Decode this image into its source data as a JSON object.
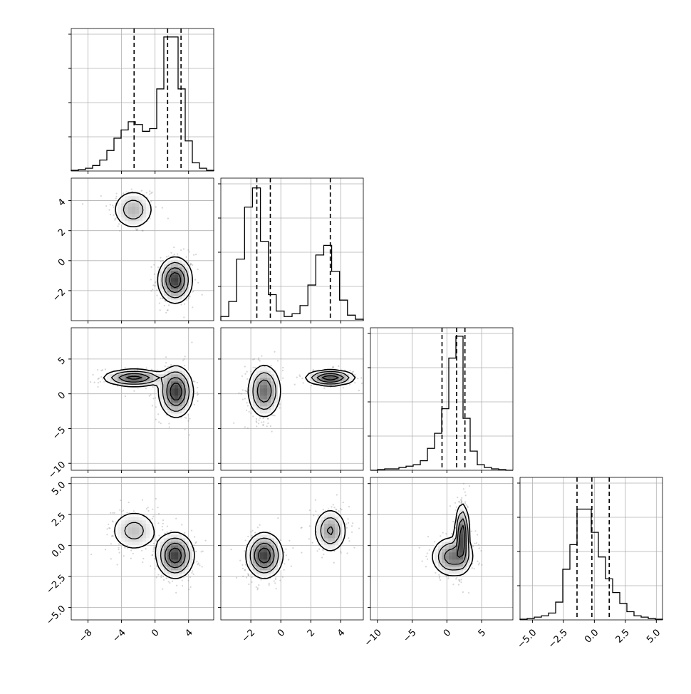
{
  "chart_data": {
    "type": "corner",
    "variables": [
      {
        "range": [
          -10,
          7
        ],
        "ticks": [
          -8,
          -4,
          0,
          4
        ],
        "tick_labels": [
          "−8",
          "−4",
          "0",
          "4"
        ],
        "quantiles": [
          -2.5,
          1.5,
          3.1
        ],
        "hist": [
          0.5,
          1,
          2,
          4,
          8,
          15,
          24,
          30,
          36,
          34,
          29,
          31,
          60,
          98,
          98,
          60,
          22,
          6,
          2,
          0.5
        ],
        "hist_max": 100
      },
      {
        "range": [
          -4,
          5.5
        ],
        "ticks": [
          -2,
          0,
          2,
          4
        ],
        "tick_labels": [
          "−2",
          "0",
          "2",
          "4"
        ],
        "quantiles": [
          -1.6,
          -0.7,
          3.3
        ],
        "hist": [
          3,
          14,
          45,
          83,
          97,
          58,
          19,
          7,
          3,
          5,
          11,
          26,
          48,
          55,
          36,
          15,
          4,
          1
        ],
        "hist_max": 100
      },
      {
        "range": [
          -11,
          9.5
        ],
        "ticks": [
          -10,
          -5,
          0,
          5
        ],
        "tick_labels": [
          "−10",
          "−5",
          "0",
          "5"
        ],
        "quantiles": [
          -0.7,
          1.4,
          2.6
        ],
        "hist": [
          0,
          0.5,
          1,
          1,
          2,
          3,
          4,
          7,
          16,
          27,
          45,
          82,
          98,
          38,
          14,
          4,
          2,
          1,
          0.5,
          0
        ],
        "hist_max": 100
      },
      {
        "range": [
          -6,
          5.5
        ],
        "ticks": [
          -5,
          -2.5,
          0,
          2.5,
          5
        ],
        "tick_labels": [
          "−5.0",
          "−2.5",
          "0.0",
          "2.5",
          "5.0"
        ],
        "quantiles": [
          -1.4,
          -0.2,
          1.2
        ],
        "hist": [
          0.5,
          1,
          2,
          3,
          5,
          13,
          37,
          55,
          81,
          81,
          64,
          46,
          30,
          20,
          12,
          6,
          3,
          2,
          1,
          0.5
        ],
        "hist_max": 100
      }
    ],
    "pair_modes": {
      "1_0": [
        {
          "mx": -2.6,
          "my": 3.4,
          "sx": 1.3,
          "sy": 0.7,
          "w": 0.35
        },
        {
          "mx": 2.4,
          "my": -1.3,
          "sx": 1.0,
          "sy": 0.75,
          "w": 0.65
        }
      ],
      "2_0": [
        {
          "mx": -2.5,
          "my": 2.3,
          "sx": 1.8,
          "sy": 0.6,
          "w": 0.35
        },
        {
          "mx": 2.5,
          "my": 0.3,
          "sx": 1.0,
          "sy": 1.8,
          "w": 0.65
        }
      ],
      "3_0": [
        {
          "mx": -2.5,
          "my": 1.2,
          "sx": 1.5,
          "sy": 0.9,
          "w": 0.35
        },
        {
          "mx": 2.4,
          "my": -0.8,
          "sx": 1.1,
          "sy": 0.9,
          "w": 0.65
        }
      ],
      "2_1": [
        {
          "mx": -1.1,
          "my": 0.4,
          "sx": 0.55,
          "sy": 1.9,
          "w": 0.65
        },
        {
          "mx": 3.3,
          "my": 2.3,
          "sx": 0.8,
          "sy": 0.55,
          "w": 0.35
        }
      ],
      "3_1": [
        {
          "mx": -1.1,
          "my": -0.8,
          "sx": 0.6,
          "sy": 0.9,
          "w": 0.65
        },
        {
          "mx": 3.3,
          "my": 1.2,
          "sx": 0.55,
          "sy": 0.9,
          "w": 0.35
        }
      ],
      "3_2": [
        {
          "mx": 0.8,
          "my": -0.9,
          "sx": 1.5,
          "sy": 0.8,
          "w": 0.6
        },
        {
          "mx": 2.2,
          "my": 0.9,
          "sx": 0.5,
          "sy": 1.2,
          "w": 0.4
        }
      ]
    }
  },
  "colors": {
    "line": "#000000",
    "grid": "#b0b0b0",
    "scatter": "#888888",
    "background": "#ffffff"
  }
}
